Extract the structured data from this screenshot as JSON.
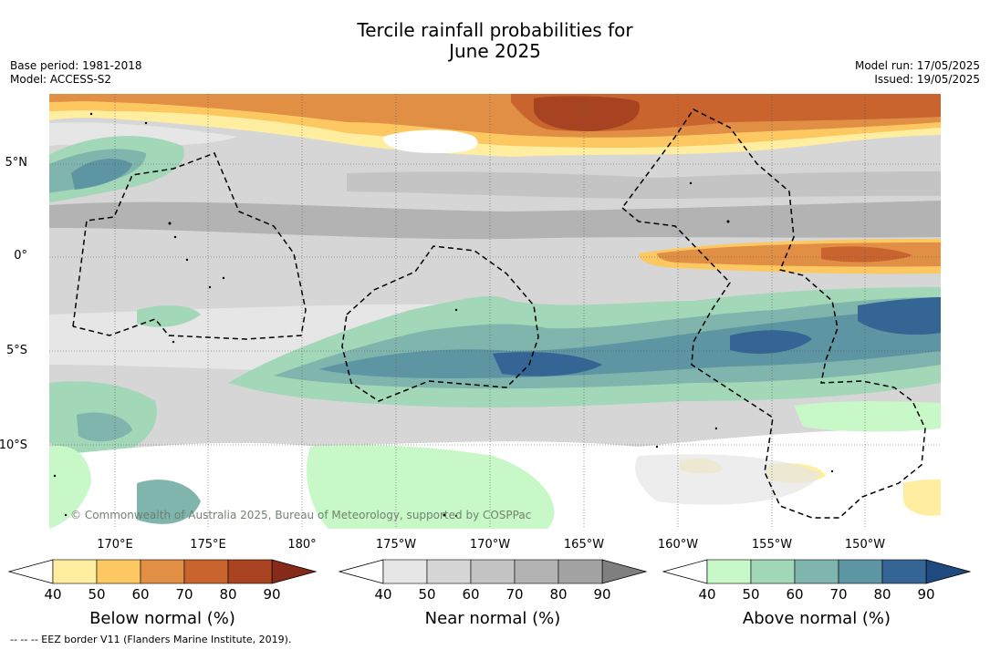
{
  "title_line1": "Tercile rainfall probabilities for",
  "title_line2": "June 2025",
  "base_period": "Base period: 1981-2018",
  "model": "Model: ACCESS-S2",
  "model_run": "Model run: 17/05/2025",
  "issued": "Issued: 19/05/2025",
  "latitudes": [
    "5°N",
    "0°",
    "5°S",
    "10°S"
  ],
  "longitudes": [
    "170°E",
    "175°E",
    "180°",
    "175°W",
    "170°W",
    "165°W",
    "160°W",
    "155°W",
    "150°W"
  ],
  "copyright": "© Commonwealth of Australia 2025, Bureau of Meteorology, supported by COSPPac",
  "colorbars": [
    {
      "label": "Below normal (%)",
      "ticks": [
        "40",
        "50",
        "60",
        "70",
        "80",
        "90"
      ],
      "colors": [
        "#ffeea0",
        "#fdc862",
        "#e08f45",
        "#c9642f",
        "#a84322",
        "#862a1a"
      ]
    },
    {
      "label": "Near normal (%)",
      "ticks": [
        "40",
        "50",
        "60",
        "70",
        "80",
        "90"
      ],
      "colors": [
        "#e6e6e6",
        "#d6d6d6",
        "#c4c4c4",
        "#b3b3b3",
        "#a3a3a3",
        "#7f7f7f"
      ]
    },
    {
      "label": "Above normal (%)",
      "ticks": [
        "40",
        "50",
        "60",
        "70",
        "80",
        "90"
      ],
      "colors": [
        "#c8f8c8",
        "#a2d7b8",
        "#80b5ad",
        "#5d95a3",
        "#346595",
        "#1e4a80"
      ]
    }
  ],
  "footer": "--  --  -- EEZ border V11 (Flanders Marine Institute, 2019)."
}
